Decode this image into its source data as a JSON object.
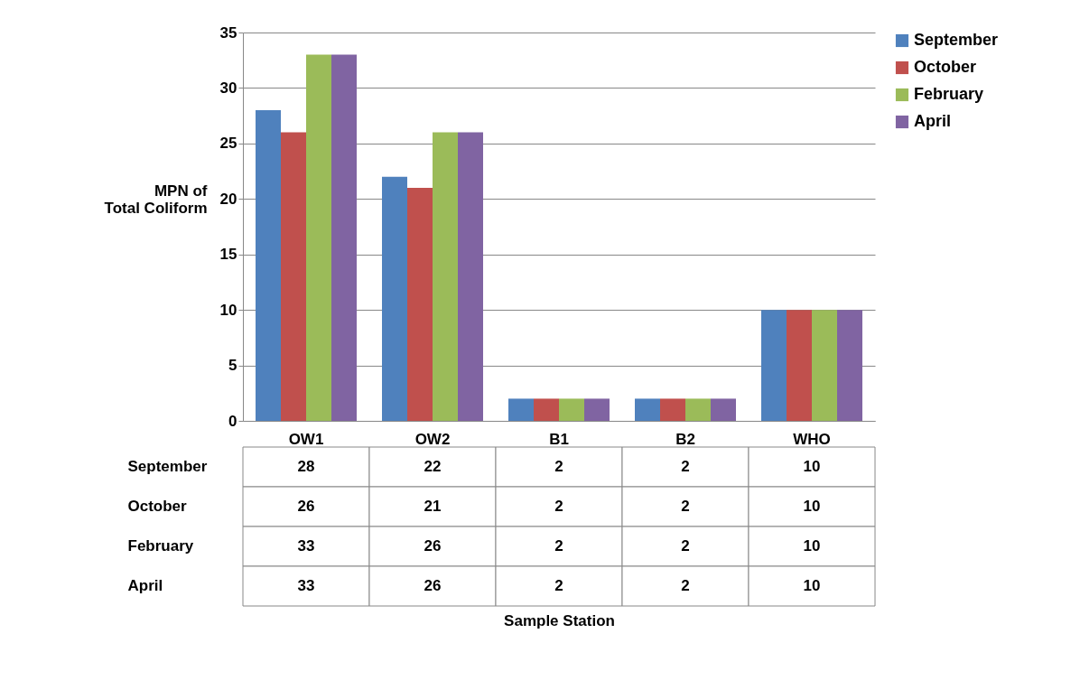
{
  "chart_data": {
    "type": "bar",
    "ylabel": "MPN of Total Coliform",
    "annotations": [
      "Sample Station"
    ],
    "categories": [
      "OW1",
      "OW2",
      "B1",
      "B2",
      "WHO"
    ],
    "series": [
      {
        "name": "September",
        "color": "#4f81bd",
        "values": [
          28,
          22,
          2,
          2,
          10
        ]
      },
      {
        "name": "October",
        "color": "#c0504d",
        "values": [
          26,
          21,
          2,
          2,
          10
        ]
      },
      {
        "name": "February",
        "color": "#9bbb59",
        "values": [
          33,
          26,
          2,
          2,
          10
        ]
      },
      {
        "name": "April",
        "color": "#8064a2",
        "values": [
          33,
          26,
          2,
          2,
          10
        ]
      }
    ],
    "ylim": [
      0,
      35
    ],
    "yticks": [
      0,
      5,
      10,
      15,
      20,
      25,
      30,
      35
    ],
    "grid": "y",
    "legend": "right",
    "data_labels": true
  }
}
